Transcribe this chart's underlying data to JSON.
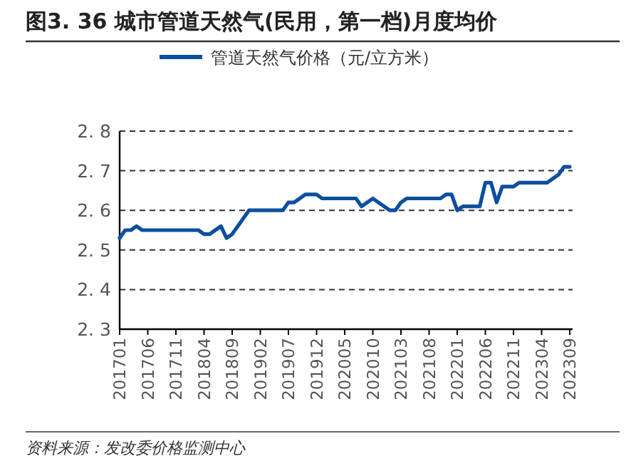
{
  "chart_data": {
    "type": "line",
    "title": "图3. 36 城市管道天然气(民用，第一档)月度均价",
    "annotations": [
      "资料来源：发改委价格监测中心"
    ],
    "categories": [
      "201701",
      null,
      null,
      null,
      null,
      "201706",
      null,
      null,
      null,
      null,
      "201711",
      null,
      null,
      null,
      null,
      "201804",
      null,
      null,
      null,
      null,
      "201809",
      null,
      null,
      null,
      null,
      "201902",
      null,
      null,
      null,
      null,
      "201907",
      null,
      null,
      null,
      null,
      "201912",
      null,
      null,
      null,
      null,
      "202005",
      null,
      null,
      null,
      null,
      "202010",
      null,
      null,
      null,
      null,
      "202103",
      null,
      null,
      null,
      null,
      "202108",
      null,
      null,
      null,
      null,
      "202201",
      null,
      null,
      null,
      null,
      "202206",
      null,
      null,
      null,
      null,
      "202211",
      null,
      null,
      null,
      null,
      "202304",
      null,
      null,
      null,
      null,
      "202309"
    ],
    "series": [
      {
        "name": "管道天然气价格（元/立方米）",
        "color": "#0d4f9f",
        "values": [
          2.53,
          2.55,
          2.55,
          2.56,
          2.55,
          2.55,
          2.55,
          2.55,
          2.55,
          2.55,
          2.55,
          2.55,
          2.55,
          2.55,
          2.55,
          2.54,
          2.54,
          2.55,
          2.56,
          2.53,
          2.54,
          2.56,
          2.58,
          2.6,
          2.6,
          2.6,
          2.6,
          2.6,
          2.6,
          2.6,
          2.62,
          2.62,
          2.63,
          2.64,
          2.64,
          2.64,
          2.63,
          2.63,
          2.63,
          2.63,
          2.63,
          2.63,
          2.63,
          2.61,
          2.62,
          2.63,
          2.62,
          2.61,
          2.6,
          2.6,
          2.62,
          2.63,
          2.63,
          2.63,
          2.63,
          2.63,
          2.63,
          2.63,
          2.64,
          2.64,
          2.6,
          2.61,
          2.61,
          2.61,
          2.61,
          2.67,
          2.67,
          2.62,
          2.66,
          2.66,
          2.66,
          2.67,
          2.67,
          2.67,
          2.67,
          2.67,
          2.67,
          2.68,
          2.69,
          2.71,
          2.71
        ]
      }
    ],
    "ylim": [
      2.3,
      2.8
    ],
    "yticks": [
      2.3,
      2.4,
      2.5,
      2.6,
      2.7,
      2.8
    ],
    "grid": "y",
    "legend": "top"
  }
}
